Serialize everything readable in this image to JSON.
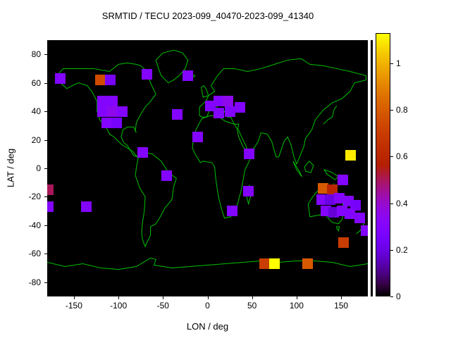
{
  "chart_data": {
    "type": "heatmap",
    "title": "SRMTID / TECU 2023-099_40470-2023-099_41340",
    "xlabel": "LON / deg",
    "ylabel": "LAT / deg",
    "xlim": [
      -180,
      180
    ],
    "ylim": [
      -90,
      90
    ],
    "x_ticks": [
      -150,
      -100,
      -50,
      0,
      50,
      100,
      150
    ],
    "y_ticks": [
      80,
      60,
      40,
      20,
      0,
      -20,
      -40,
      -60,
      -80
    ],
    "colorbar_range": [
      0,
      1.13
    ],
    "colorbar_ticks": [
      0,
      0.2,
      0.4,
      0.6,
      0.8,
      1
    ],
    "colorbar_tick_labels": [
      "0",
      "0.2",
      "0.4",
      "0.6",
      "0.8",
      "1"
    ],
    "palette": "black-violet-red-orange-yellow (gnuplot pm3d default)",
    "background": "#000000",
    "coastline_color": "#00c000",
    "grid": false,
    "legend": "colorbar-right",
    "cell_size_deg": [
      12,
      7.5
    ],
    "columns": [
      "lon_deg",
      "lat_deg",
      "tecu"
    ],
    "points": [
      [
        -165,
        63,
        0.3
      ],
      [
        -120,
        62,
        0.75
      ],
      [
        -109,
        62,
        0.25
      ],
      [
        -68,
        66,
        0.3
      ],
      [
        -22,
        65,
        0.3
      ],
      [
        -118,
        47,
        0.3
      ],
      [
        -107,
        47,
        0.3
      ],
      [
        -118,
        40,
        0.3
      ],
      [
        -107,
        40,
        0.35
      ],
      [
        -96,
        40,
        0.3
      ],
      [
        -113,
        32,
        0.3
      ],
      [
        -102,
        32,
        0.25
      ],
      [
        -34,
        38,
        0.3
      ],
      [
        3,
        44,
        0.3
      ],
      [
        13,
        47,
        0.3
      ],
      [
        23,
        47,
        0.35
      ],
      [
        13,
        39,
        0.3
      ],
      [
        25,
        40,
        0.3
      ],
      [
        36,
        43,
        0.3
      ],
      [
        -11,
        22,
        0.3
      ],
      [
        -73,
        11,
        0.3
      ],
      [
        47,
        10,
        0.3
      ],
      [
        161,
        9,
        1.1
      ],
      [
        -46,
        -5,
        0.3
      ],
      [
        152,
        -8,
        0.3
      ],
      [
        -179,
        -15,
        0.5
      ],
      [
        46,
        -16,
        0.3
      ],
      [
        130,
        -14,
        0.8
      ],
      [
        140,
        -15,
        0.6
      ],
      [
        -179,
        -27,
        0.3
      ],
      [
        -136,
        -27,
        0.3
      ],
      [
        28,
        -30,
        0.3
      ],
      [
        128,
        -22,
        0.3
      ],
      [
        138,
        -22,
        0.2
      ],
      [
        148,
        -21,
        0.3
      ],
      [
        158,
        -23,
        0.3
      ],
      [
        166,
        -26,
        0.25
      ],
      [
        133,
        -30,
        0.3
      ],
      [
        142,
        -31,
        0.18
      ],
      [
        151,
        -30,
        0.3
      ],
      [
        160,
        -32,
        0.3
      ],
      [
        171,
        -35,
        0.3
      ],
      [
        178,
        -44,
        0.3
      ],
      [
        153,
        -52,
        0.7
      ],
      [
        64,
        -67,
        0.7
      ],
      [
        75,
        -67,
        1.13
      ],
      [
        112,
        -67,
        0.8
      ]
    ]
  }
}
